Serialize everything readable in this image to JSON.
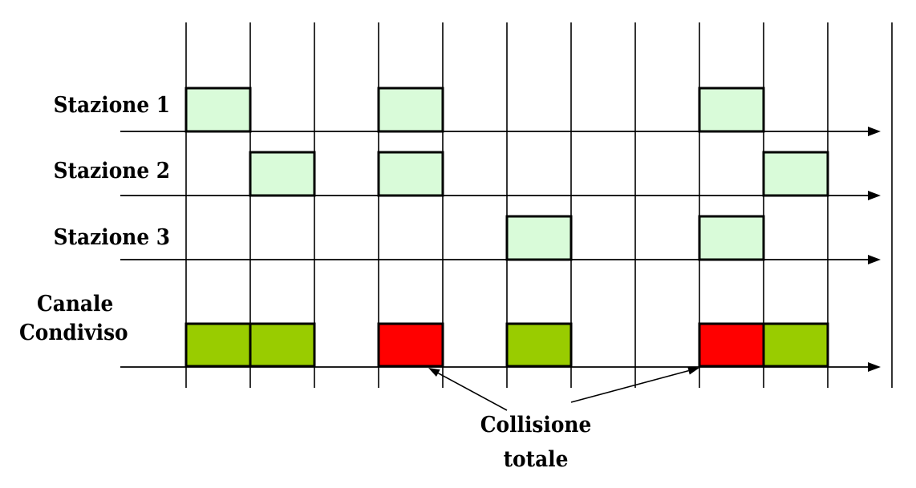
{
  "stations": [
    {
      "label": "Stazione 1"
    },
    {
      "label": "Stazione 2"
    },
    {
      "label": "Stazione 3"
    }
  ],
  "channel": {
    "label_line1": "Canale",
    "label_line2": "Condiviso"
  },
  "collision": {
    "label_line1": "Collisione",
    "label_line2": "totale"
  },
  "colors": {
    "station_frame": "#d9fbd9",
    "channel_ok": "#99cc00",
    "channel_collision": "#ff0000",
    "lines": "#000000"
  },
  "timeline": {
    "slot_count": 11,
    "station_frames": [
      [
        0,
        3,
        8
      ],
      [
        1,
        3,
        9
      ],
      [
        5,
        8
      ]
    ],
    "channel_frames": [
      {
        "slot": 0,
        "status": "ok"
      },
      {
        "slot": 1,
        "status": "ok"
      },
      {
        "slot": 3,
        "status": "collision"
      },
      {
        "slot": 5,
        "status": "ok"
      },
      {
        "slot": 8,
        "status": "collision"
      },
      {
        "slot": 9,
        "status": "ok"
      }
    ]
  }
}
